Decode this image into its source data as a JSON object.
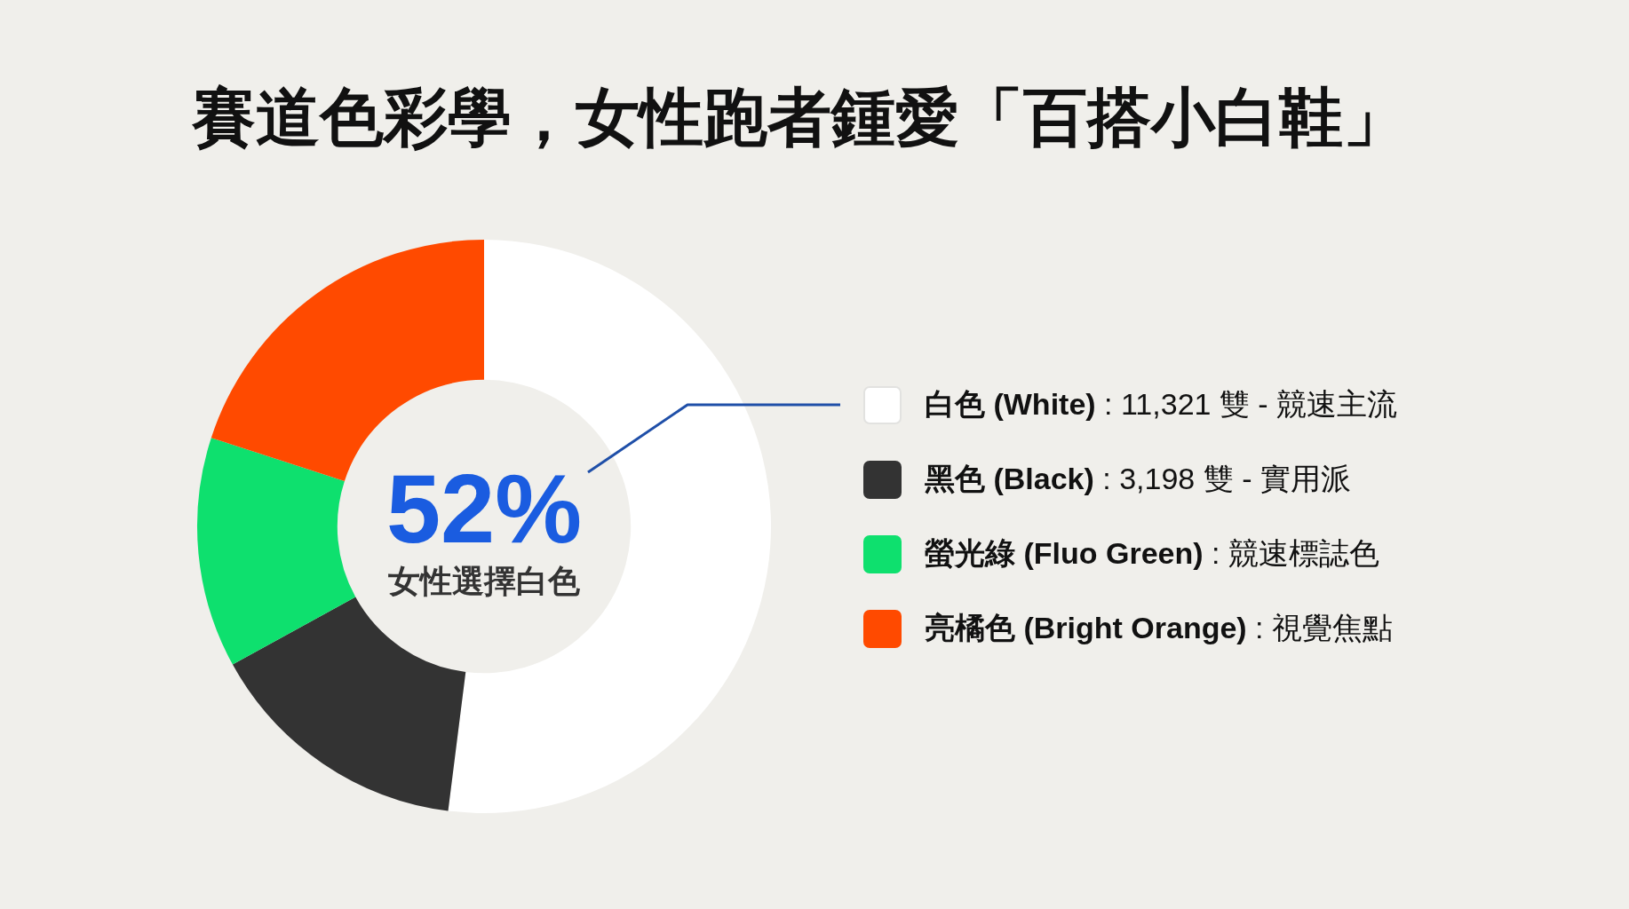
{
  "chart_data": {
    "type": "donut",
    "title": "賽道色彩學，女性跑者鍾愛「百搭小白鞋」",
    "categories": [
      "白色 (White) : 11,321 雙 - 競速主流",
      "黑色 (Black) : 3,198 雙 - 實用派",
      "螢光綠 (Fluo Green) : 競速標誌色",
      "亮橘色 (Bright Orange) : 視覺焦點"
    ],
    "values": [
      52,
      15,
      13,
      20
    ],
    "colors": [
      "#ffffff",
      "#333333",
      "#0ee06e",
      "#ff4a00"
    ],
    "annotations": [
      "52%",
      "女性選擇白色"
    ],
    "legend": "right"
  }
}
